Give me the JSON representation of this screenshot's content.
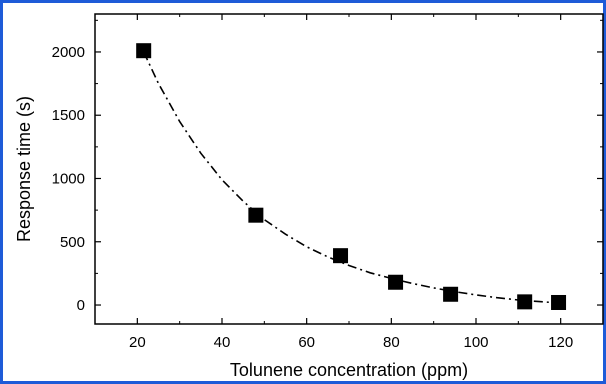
{
  "chart_data": {
    "type": "scatter",
    "title": "",
    "xlabel": "Tolunene concentration (ppm)",
    "ylabel": "Response time (s)",
    "xlim": [
      10,
      130
    ],
    "ylim": [
      -150,
      2300
    ],
    "xticks": [
      20,
      40,
      60,
      80,
      100,
      120
    ],
    "yticks": [
      0,
      500,
      1000,
      1500,
      2000
    ],
    "xtick_labels": [
      "20",
      "40",
      "60",
      "80",
      "100",
      "120"
    ],
    "ytick_labels": [
      "0",
      "500",
      "1000",
      "1500",
      "2000"
    ],
    "grid": false,
    "legend": "none",
    "series": [
      {
        "marker": "filled-square",
        "color": "#000000",
        "x": [
          21.5,
          48,
          68,
          81,
          94,
          111.5,
          119.5
        ],
        "y": [
          2010,
          710,
          390,
          180,
          85,
          25,
          20
        ]
      }
    ],
    "fit_curve": {
      "style": "dash-dot",
      "color": "#000000",
      "x": [
        21.5,
        25,
        30,
        35,
        40,
        45,
        50,
        55,
        60,
        65,
        70,
        75,
        80,
        85,
        90,
        95,
        100,
        105,
        110,
        115,
        120
      ],
      "y": [
        2000,
        1750,
        1450,
        1200,
        990,
        820,
        675,
        560,
        460,
        380,
        312,
        255,
        210,
        170,
        135,
        105,
        80,
        58,
        40,
        27,
        15
      ]
    }
  }
}
